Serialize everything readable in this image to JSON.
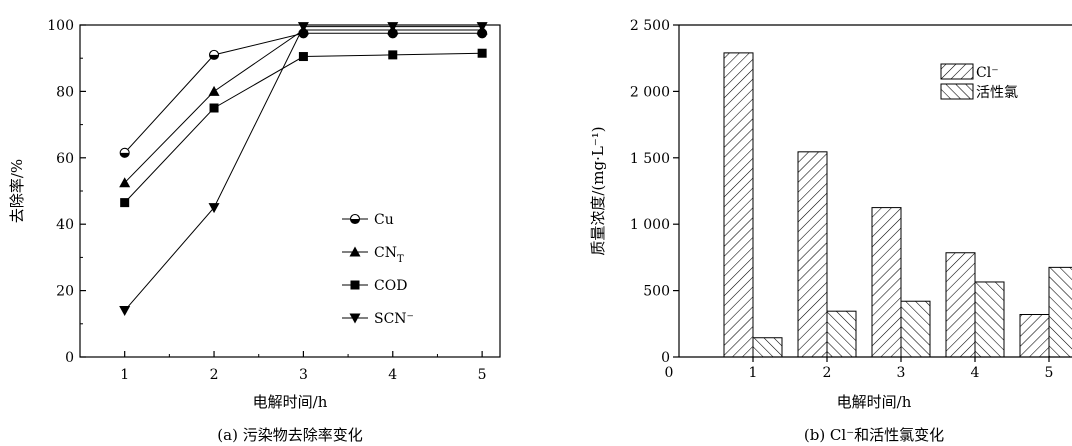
{
  "chart_data": [
    {
      "type": "line",
      "caption": "(a) 污染物去除率变化",
      "xlabel": "电解时间/h",
      "ylabel": "去除率/%",
      "x": [
        1,
        2,
        3,
        4,
        5
      ],
      "xticks": [
        "1",
        "2",
        "3",
        "4",
        "5"
      ],
      "xlim": [
        0.5,
        5.2
      ],
      "ylim": [
        0,
        100
      ],
      "yticks": [
        "0",
        "20",
        "40",
        "60",
        "80",
        "100"
      ],
      "legend_position": "center-right",
      "series": [
        {
          "name": "Cu",
          "marker": "half-filled-circle",
          "values": [
            61.5,
            91,
            97.5,
            97.5,
            97.5
          ]
        },
        {
          "name": "CN",
          "subscript": "T",
          "marker": "triangle-up",
          "values": [
            52.5,
            80,
            98.5,
            98.5,
            98.5
          ]
        },
        {
          "name": "COD",
          "marker": "square",
          "values": [
            46.5,
            75,
            90.5,
            91,
            91.5
          ]
        },
        {
          "name": "SCN⁻",
          "marker": "triangle-down",
          "values": [
            14,
            45,
            99.5,
            99.5,
            99.5
          ]
        }
      ]
    },
    {
      "type": "bar",
      "caption": "(b) Cl⁻和活性氯变化",
      "xlabel": "电解时间/h",
      "ylabel": "质量浓度/(mg·L⁻¹)",
      "categories": [
        "1",
        "2",
        "3",
        "4",
        "5"
      ],
      "xticks": [
        "0",
        "1",
        "2",
        "3",
        "4",
        "5"
      ],
      "ylim": [
        0,
        2500
      ],
      "yticks": [
        "0",
        "500",
        "1 000",
        "1 500",
        "2 000",
        "2 500"
      ],
      "legend_position": "top-right",
      "series": [
        {
          "name": "Cl⁻",
          "hatch": "backslash",
          "values": [
            2290,
            1545,
            1125,
            785,
            320
          ]
        },
        {
          "name": "活性氯",
          "hatch": "slash",
          "values": [
            145,
            345,
            420,
            565,
            675
          ]
        }
      ]
    }
  ]
}
